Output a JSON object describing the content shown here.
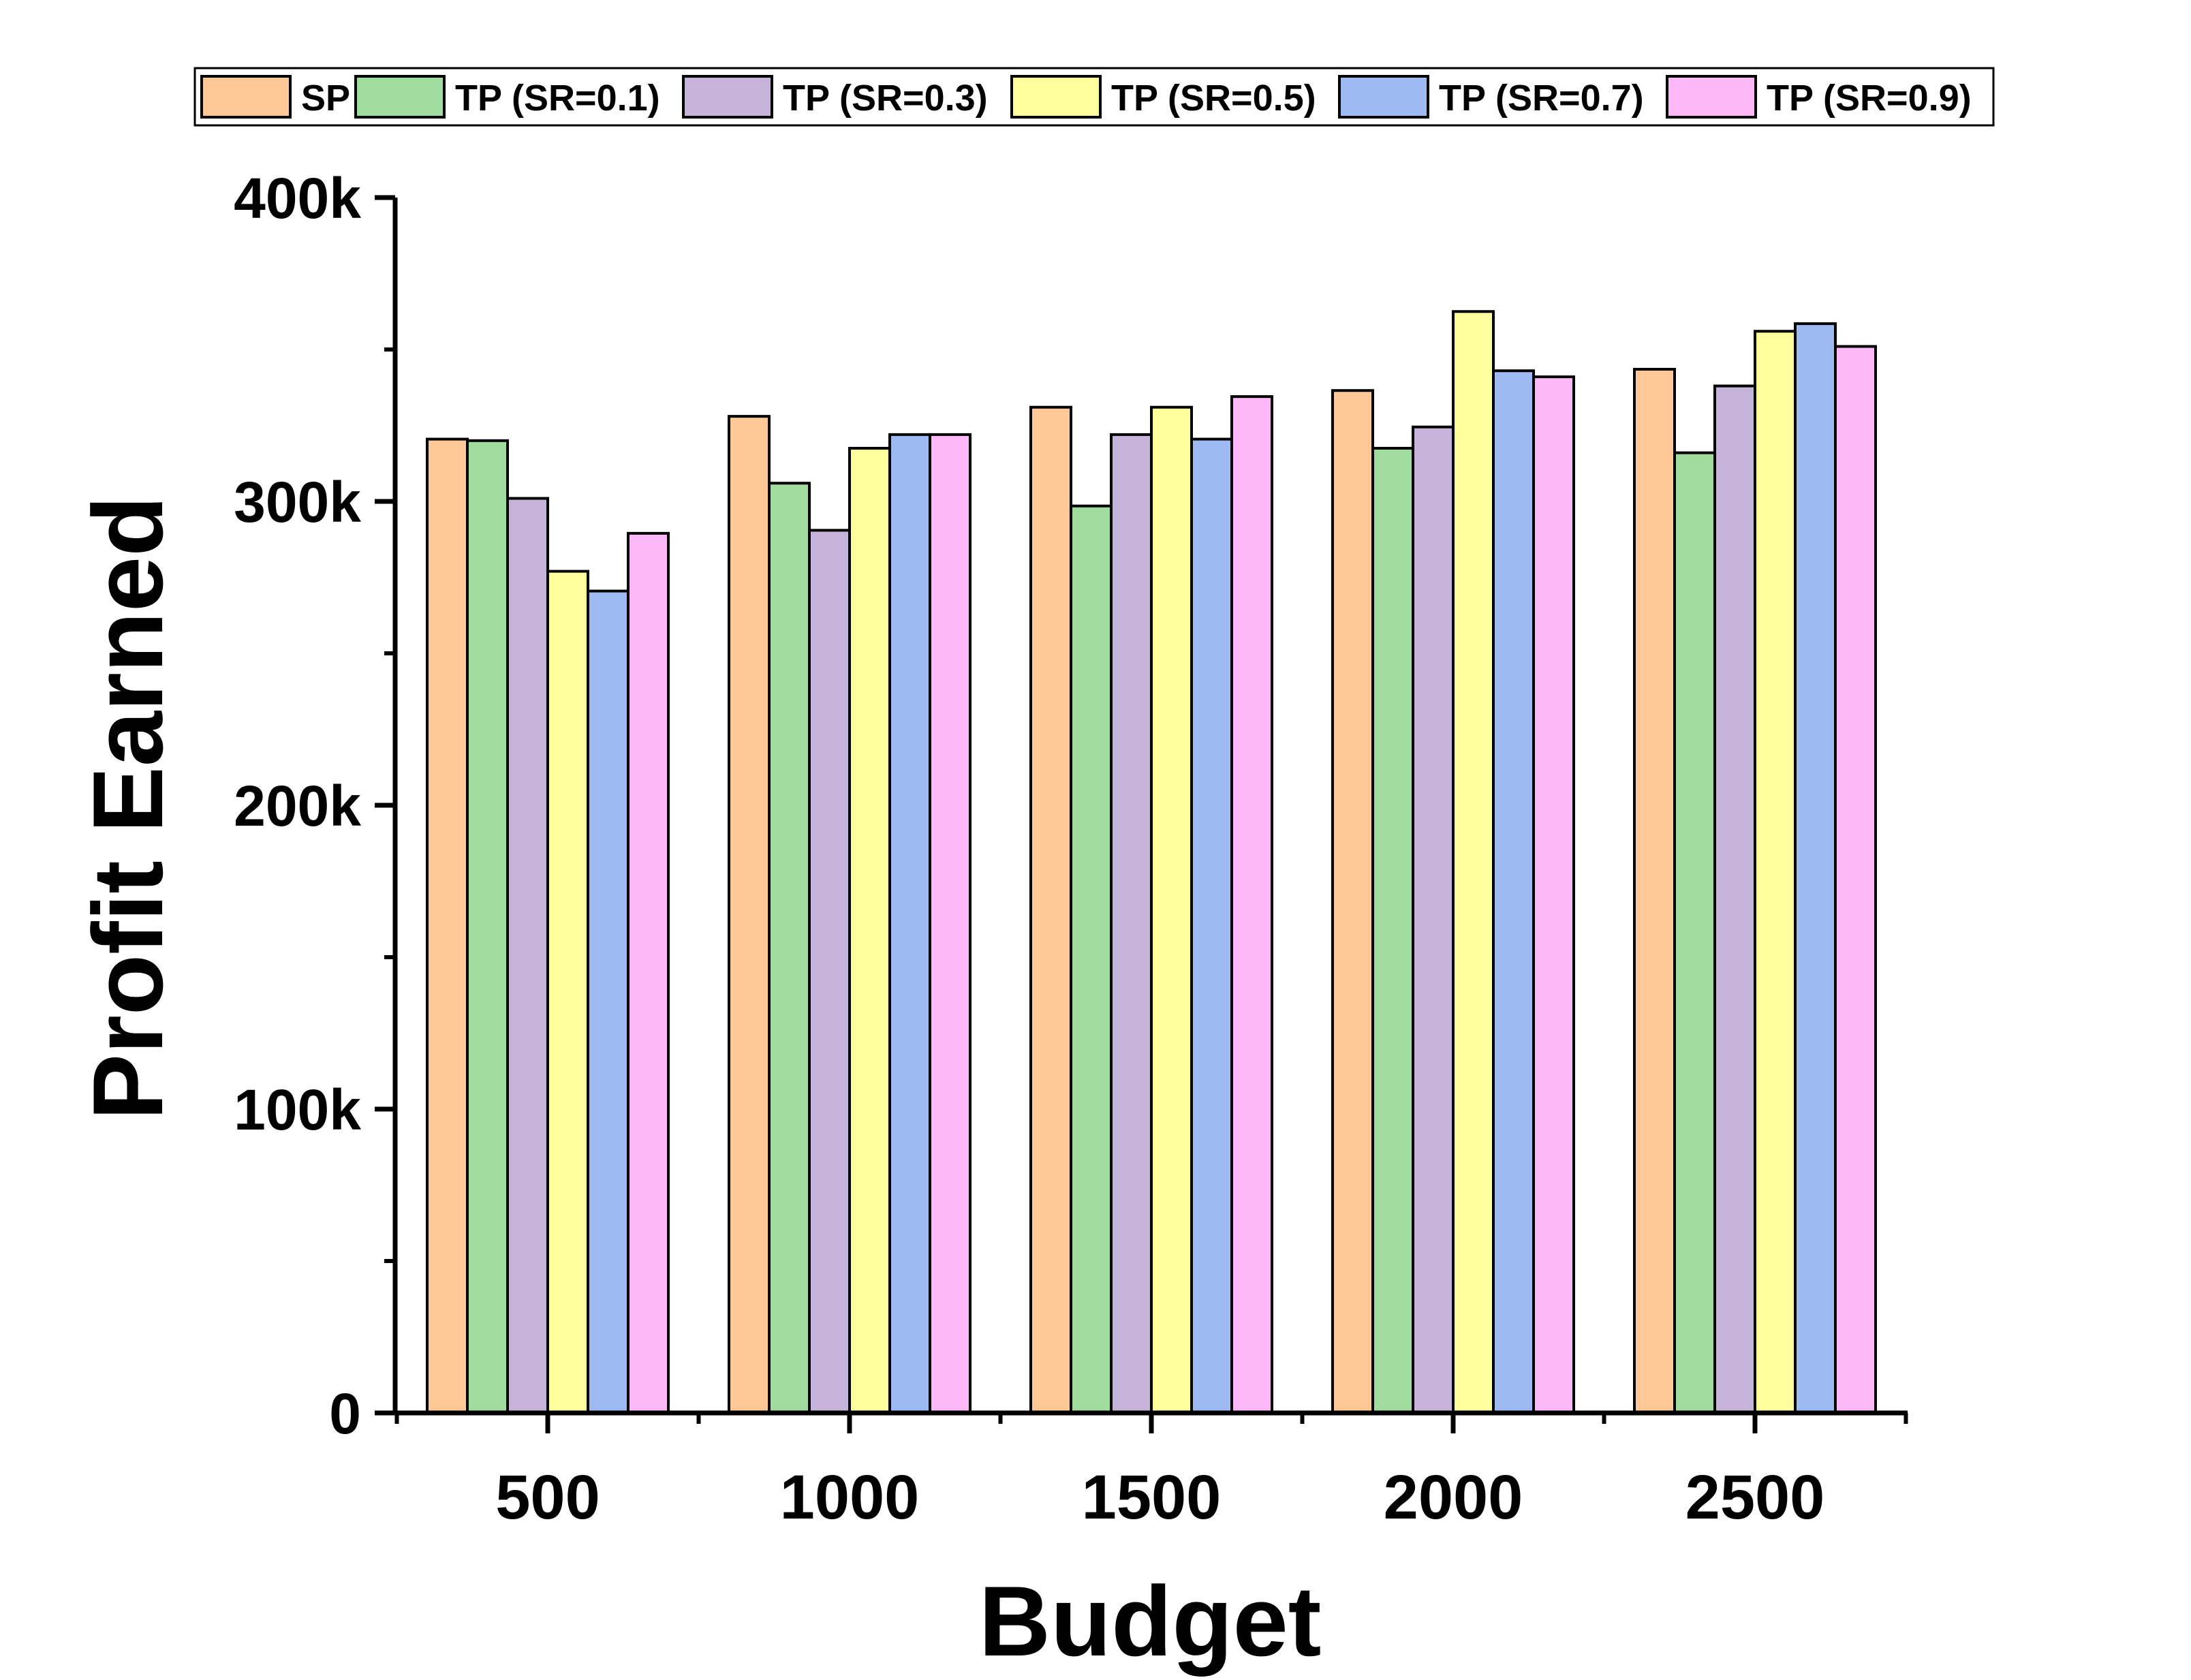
{
  "chart_data": {
    "type": "bar",
    "title": "",
    "xlabel": "Budget",
    "ylabel": "Profit Earned",
    "categories": [
      "500",
      "1000",
      "1500",
      "2000",
      "2500"
    ],
    "ylim": [
      0,
      400000
    ],
    "yticks": [
      {
        "value": 0,
        "label": "0"
      },
      {
        "value": 100000,
        "label": "100k"
      },
      {
        "value": 200000,
        "label": "200k"
      },
      {
        "value": 300000,
        "label": "300k"
      },
      {
        "value": 400000,
        "label": "400k"
      }
    ],
    "y_minor_ticks": [
      50000,
      150000,
      250000,
      350000
    ],
    "grid": false,
    "legend_position": "top",
    "series": [
      {
        "name": "SP",
        "color": "#FDC896",
        "values": [
          320500,
          328000,
          331000,
          336500,
          343500
        ]
      },
      {
        "name": "TP (SR=0.1)",
        "color": "#A0DC9E",
        "values": [
          320000,
          306000,
          298500,
          317500,
          316000
        ]
      },
      {
        "name": "TP (SR=0.3)",
        "color": "#C5B3D9",
        "values": [
          301000,
          290500,
          322000,
          324500,
          338000
        ]
      },
      {
        "name": "TP (SR=0.5)",
        "color": "#FFFF9E",
        "values": [
          277000,
          317500,
          331000,
          362500,
          356000
        ]
      },
      {
        "name": "TP (SR=0.7)",
        "color": "#9DBAF3",
        "values": [
          270500,
          322000,
          320500,
          343000,
          358500
        ]
      },
      {
        "name": "TP (SR=0.9)",
        "color": "#FDB9F7",
        "values": [
          289500,
          322000,
          334500,
          341000,
          351000
        ]
      }
    ]
  }
}
